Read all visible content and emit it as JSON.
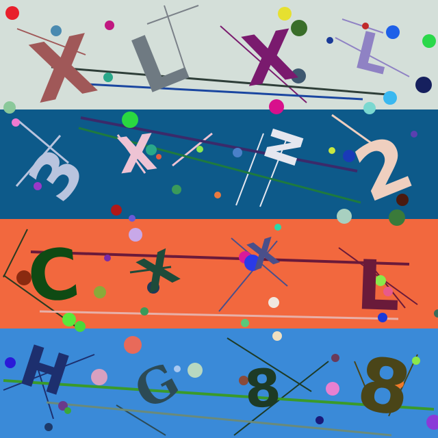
{
  "bands": [
    {
      "id": "band-1",
      "color": "#d4dfd9",
      "chars": [
        "X",
        "L",
        "X",
        "L"
      ],
      "char_colors": [
        "#a05858",
        "#6f7a82",
        "#7a1a6e",
        "#8f82c4"
      ]
    },
    {
      "id": "band-2",
      "color": "#0d5a8a",
      "chars": [
        "3",
        "X",
        "N",
        "2"
      ],
      "char_colors": [
        "#b9c4de",
        "#eec3d4",
        "#e5e7ef",
        "#efcfbf"
      ]
    },
    {
      "id": "band-3",
      "color": "#f2683e",
      "chars": [
        "C",
        "X",
        "X",
        "L"
      ],
      "char_colors": [
        "#0f4a13",
        "#1e4b3a",
        "#4a4f8a",
        "#6a1a3a"
      ]
    },
    {
      "id": "band-4",
      "color": "#3a8ad8",
      "chars": [
        "H",
        "G",
        "8",
        "8"
      ],
      "char_colors": [
        "#1d2f6e",
        "#2c4a55",
        "#1d3a25",
        "#4a4518"
      ]
    }
  ]
}
